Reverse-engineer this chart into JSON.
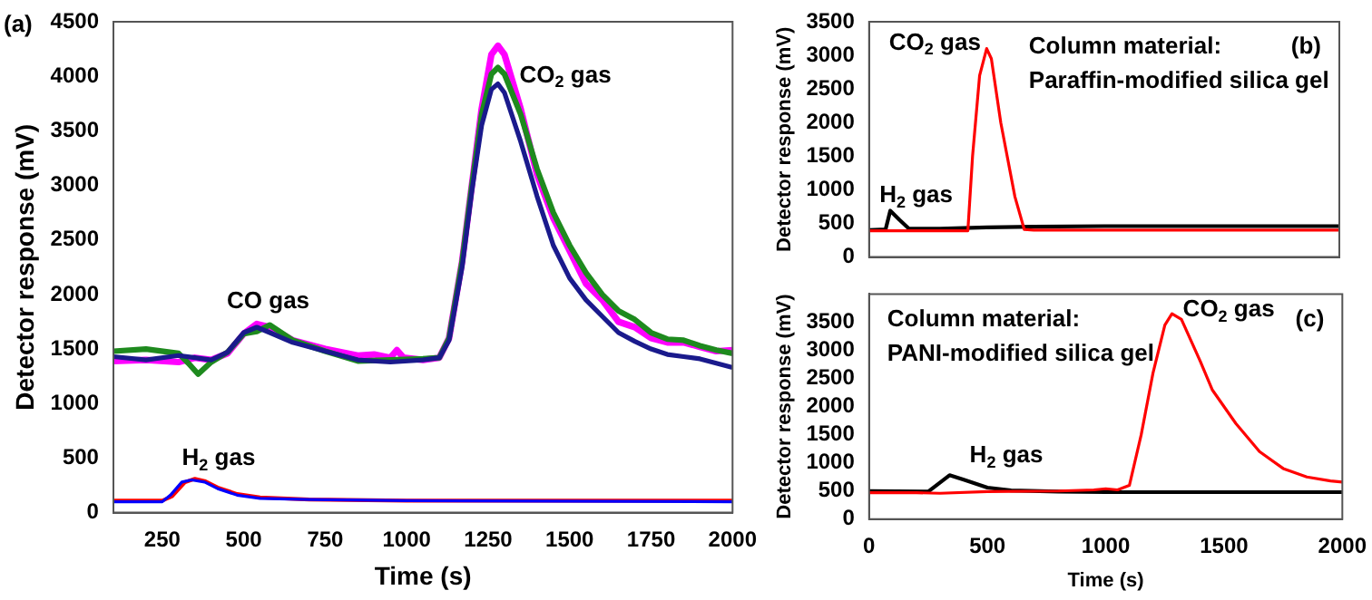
{
  "chart_data": [
    {
      "type": "line",
      "title": "(a)",
      "xlabel": "Time (s)",
      "ylabel": "Detector response (mV)",
      "xlim": [
        100,
        2000
      ],
      "xticks": [
        250,
        500,
        750,
        1000,
        1250,
        1500,
        1750,
        2000
      ],
      "ylim": [
        0,
        4500
      ],
      "yticks": [
        0,
        500,
        1000,
        1500,
        2000,
        2500,
        3000,
        3500,
        4000,
        4500
      ],
      "annotations": [
        "CO$_{2}$ gas",
        "CO gas",
        "H$_{2}$ gas"
      ],
      "series": [
        {
          "color": "#ff00ff",
          "x": [
            100,
            200,
            300,
            350,
            400,
            450,
            500,
            540,
            580,
            650,
            750,
            850,
            900,
            950,
            970,
            990,
            1050,
            1100,
            1130,
            1170,
            1200,
            1230,
            1260,
            1280,
            1300,
            1350,
            1400,
            1450,
            1500,
            1550,
            1600,
            1650,
            1700,
            1750,
            1800,
            1850,
            1900,
            1950,
            2000
          ],
          "values": [
            1390,
            1400,
            1380,
            1420,
            1400,
            1460,
            1640,
            1730,
            1700,
            1580,
            1500,
            1440,
            1450,
            1420,
            1490,
            1420,
            1400,
            1420,
            1600,
            2300,
            3000,
            3700,
            4200,
            4280,
            4200,
            3700,
            3100,
            2700,
            2400,
            2100,
            1950,
            1750,
            1700,
            1600,
            1560,
            1560,
            1520,
            1480,
            1490
          ]
        },
        {
          "color": "#1e8a1e",
          "x": [
            100,
            200,
            300,
            330,
            360,
            400,
            450,
            500,
            540,
            580,
            650,
            750,
            850,
            950,
            1050,
            1100,
            1130,
            1170,
            1200,
            1230,
            1260,
            1280,
            1300,
            1350,
            1400,
            1450,
            1500,
            1550,
            1600,
            1650,
            1700,
            1750,
            1800,
            1850,
            1900,
            1950,
            2000
          ],
          "values": [
            1480,
            1500,
            1460,
            1370,
            1270,
            1380,
            1470,
            1640,
            1660,
            1720,
            1580,
            1480,
            1390,
            1400,
            1410,
            1420,
            1600,
            2300,
            3000,
            3650,
            4020,
            4080,
            4020,
            3650,
            3150,
            2750,
            2450,
            2200,
            2000,
            1850,
            1770,
            1650,
            1590,
            1580,
            1530,
            1490,
            1460
          ]
        },
        {
          "color": "#1a1a8c",
          "x": [
            100,
            200,
            300,
            350,
            400,
            450,
            500,
            540,
            580,
            650,
            750,
            850,
            950,
            1050,
            1100,
            1130,
            1170,
            1200,
            1230,
            1260,
            1280,
            1300,
            1350,
            1400,
            1450,
            1500,
            1550,
            1600,
            1650,
            1700,
            1750,
            1800,
            1850,
            1900,
            1950,
            2000
          ],
          "values": [
            1430,
            1400,
            1440,
            1420,
            1400,
            1470,
            1650,
            1700,
            1650,
            1560,
            1480,
            1400,
            1380,
            1400,
            1420,
            1580,
            2250,
            2950,
            3550,
            3880,
            3930,
            3850,
            3400,
            2900,
            2450,
            2150,
            1950,
            1800,
            1650,
            1570,
            1500,
            1450,
            1430,
            1410,
            1370,
            1330
          ]
        },
        {
          "color": "#ff0000",
          "x": [
            100,
            250,
            280,
            320,
            350,
            380,
            420,
            480,
            550,
            700,
            1000,
            2000
          ],
          "values": [
            110,
            110,
            150,
            280,
            310,
            290,
            230,
            170,
            140,
            120,
            110,
            110
          ]
        },
        {
          "color": "#0000ff",
          "x": [
            100,
            250,
            275,
            310,
            340,
            380,
            420,
            480,
            550,
            700,
            1000,
            2000
          ],
          "values": [
            100,
            100,
            160,
            280,
            300,
            280,
            220,
            160,
            130,
            120,
            110,
            100
          ]
        }
      ]
    },
    {
      "type": "line",
      "title": "(b)",
      "ylabel": "Detector response (mV)",
      "xlim": [
        0,
        2000
      ],
      "xticks": [
        0,
        500,
        1000,
        1500,
        2000
      ],
      "ylim": [
        0,
        3500
      ],
      "yticks": [
        0,
        500,
        1000,
        1500,
        2000,
        2500,
        3000,
        3500
      ],
      "tick_labels": "y",
      "annotations": [
        "Column material:",
        "Paraffin-modified silica gel",
        "CO$_{2}$ gas",
        "H$_{2}$ gas"
      ],
      "series": [
        {
          "color": "#000000",
          "x": [
            0,
            70,
            90,
            130,
            170,
            300,
            500,
            700,
            1000,
            2000
          ],
          "values": [
            400,
            410,
            690,
            550,
            420,
            420,
            440,
            450,
            460,
            460
          ]
        },
        {
          "color": "#ff0000",
          "x": [
            0,
            420,
            440,
            470,
            500,
            520,
            560,
            620,
            660,
            700,
            2000
          ],
          "values": [
            390,
            390,
            1500,
            2700,
            3100,
            2950,
            2000,
            900,
            410,
            400,
            400
          ]
        }
      ]
    },
    {
      "type": "line",
      "title": "(c)",
      "xlabel": "Time (s)",
      "ylabel": "Detector response (mV)",
      "xlim": [
        0,
        2000
      ],
      "xticks": [
        0,
        500,
        1000,
        1500,
        2000
      ],
      "ylim": [
        0,
        4000
      ],
      "yticks": [
        0,
        500,
        1000,
        1500,
        2000,
        2500,
        3000,
        3500
      ],
      "annotations": [
        "Column material:",
        "PANI-modified silica gel",
        "CO$_{2}$ gas",
        "H$_{2}$ gas"
      ],
      "series": [
        {
          "color": "#000000",
          "x": [
            0,
            250,
            300,
            340,
            400,
            500,
            600,
            800,
            1000,
            2000
          ],
          "values": [
            500,
            490,
            650,
            780,
            700,
            560,
            510,
            490,
            480,
            480
          ]
        },
        {
          "color": "#ff0000",
          "x": [
            0,
            200,
            300,
            500,
            800,
            950,
            1000,
            1050,
            1100,
            1150,
            1200,
            1250,
            1280,
            1320,
            1400,
            1450,
            1550,
            1650,
            1750,
            1850,
            1950,
            2000
          ],
          "values": [
            470,
            470,
            460,
            490,
            500,
            520,
            540,
            520,
            600,
            1500,
            2600,
            3450,
            3650,
            3550,
            2800,
            2300,
            1700,
            1200,
            900,
            750,
            680,
            660
          ]
        }
      ]
    }
  ]
}
